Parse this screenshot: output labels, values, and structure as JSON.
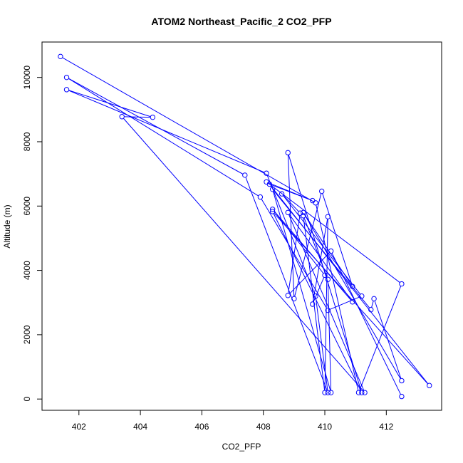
{
  "chart_data": {
    "type": "line",
    "title": "ATOM2 Northeast_Pacific_2 CO2_PFP",
    "xlabel": "CO2_PFP",
    "ylabel": "Altitude (m)",
    "xlim": [
      400.8,
      413.8
    ],
    "ylim": [
      -350,
      11100
    ],
    "x_ticks": [
      402,
      404,
      406,
      408,
      410,
      412
    ],
    "y_ticks": [
      0,
      2000,
      4000,
      6000,
      8000,
      10000
    ],
    "grid": false,
    "line_color": "#0000ff",
    "series": [
      {
        "points": [
          [
            401.4,
            10650
          ],
          [
            409.7,
            6100
          ],
          [
            411.1,
            200
          ],
          [
            412.5,
            3580
          ],
          [
            408.1,
            6750
          ],
          [
            409.6,
            6170
          ],
          [
            408.2,
            6680
          ],
          [
            413.4,
            420
          ],
          [
            408.3,
            5830
          ],
          [
            411.2,
            200
          ],
          [
            408.8,
            7660
          ],
          [
            409.0,
            3120
          ],
          [
            409.9,
            6460
          ],
          [
            410.9,
            3500
          ],
          [
            409.3,
            5800
          ],
          [
            412.5,
            570
          ],
          [
            411.6,
            3120
          ],
          [
            411.5,
            2780
          ],
          [
            408.3,
            6520
          ],
          [
            410.2,
            200
          ],
          [
            410.1,
            3720
          ],
          [
            409.3,
            5700
          ],
          [
            410.0,
            200
          ],
          [
            410.1,
            5670
          ],
          [
            409.6,
            2950
          ],
          [
            410.0,
            3850
          ],
          [
            408.3,
            5900
          ],
          [
            410.9,
            3020
          ],
          [
            408.8,
            5800
          ],
          [
            411.3,
            200
          ],
          [
            403.4,
            8780
          ],
          [
            404.4,
            8760
          ],
          [
            401.6,
            9620
          ],
          [
            408.1,
            7020
          ],
          [
            409.7,
            3200
          ],
          [
            410.1,
            200
          ],
          [
            407.4,
            6960
          ],
          [
            401.6,
            10000
          ],
          [
            407.9,
            6280
          ],
          [
            410.1,
            2760
          ],
          [
            411.2,
            3200
          ],
          [
            408.6,
            6380
          ],
          [
            409.2,
            5780
          ],
          [
            408.8,
            3220
          ],
          [
            410.2,
            4600
          ],
          [
            412.5,
            80
          ]
        ]
      }
    ]
  }
}
